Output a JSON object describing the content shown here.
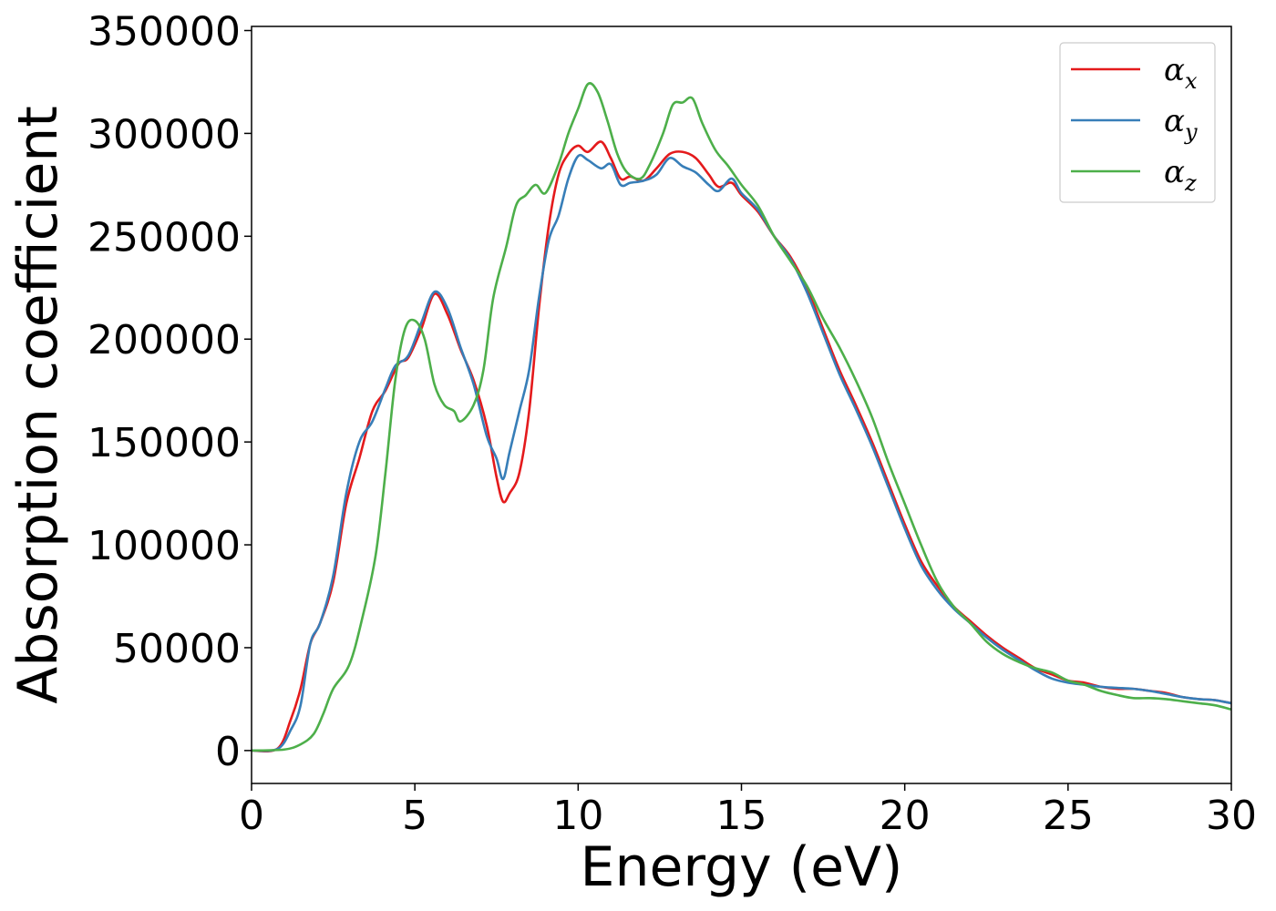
{
  "chart_data": {
    "type": "line",
    "title": "",
    "xlabel": "Energy (eV)",
    "ylabel": "Absorption coefficient",
    "xlim": [
      0,
      30
    ],
    "ylim": [
      -16000,
      352000
    ],
    "xticks": [
      "0",
      "5",
      "10",
      "15",
      "20",
      "25",
      "30"
    ],
    "xtick_values": [
      0,
      5,
      10,
      15,
      20,
      25,
      30
    ],
    "yticks": [
      "0",
      "50000",
      "100000",
      "150000",
      "200000",
      "250000",
      "300000",
      "350000"
    ],
    "ytick_values": [
      0,
      50000,
      100000,
      150000,
      200000,
      250000,
      300000,
      350000
    ],
    "grid": false,
    "legend_position": "top-right",
    "series": [
      {
        "name": "α_x",
        "symbol": "α",
        "subscript": "x",
        "color": "#e41a1c",
        "points": [
          [
            0,
            0
          ],
          [
            0.8,
            1000
          ],
          [
            1.2,
            15000
          ],
          [
            1.5,
            30000
          ],
          [
            1.8,
            52000
          ],
          [
            2.1,
            62000
          ],
          [
            2.5,
            82000
          ],
          [
            2.9,
            120000
          ],
          [
            3.3,
            142000
          ],
          [
            3.7,
            165000
          ],
          [
            4.1,
            175000
          ],
          [
            4.5,
            188000
          ],
          [
            4.8,
            191000
          ],
          [
            5.2,
            205000
          ],
          [
            5.6,
            222000
          ],
          [
            6.0,
            212000
          ],
          [
            6.4,
            195000
          ],
          [
            6.8,
            180000
          ],
          [
            7.2,
            158000
          ],
          [
            7.5,
            133000
          ],
          [
            7.7,
            121000
          ],
          [
            7.9,
            125000
          ],
          [
            8.2,
            135000
          ],
          [
            8.5,
            165000
          ],
          [
            8.8,
            215000
          ],
          [
            9.1,
            255000
          ],
          [
            9.4,
            280000
          ],
          [
            9.7,
            290000
          ],
          [
            10.0,
            294000
          ],
          [
            10.3,
            291000
          ],
          [
            10.7,
            296000
          ],
          [
            11.0,
            288000
          ],
          [
            11.3,
            278000
          ],
          [
            11.6,
            279000
          ],
          [
            12.0,
            277000
          ],
          [
            12.4,
            283000
          ],
          [
            12.8,
            290000
          ],
          [
            13.2,
            291000
          ],
          [
            13.6,
            288000
          ],
          [
            14.0,
            280000
          ],
          [
            14.3,
            274000
          ],
          [
            14.7,
            276000
          ],
          [
            15.0,
            270000
          ],
          [
            15.5,
            262000
          ],
          [
            16.0,
            250000
          ],
          [
            16.5,
            240000
          ],
          [
            17.0,
            225000
          ],
          [
            17.5,
            205000
          ],
          [
            18.0,
            185000
          ],
          [
            18.5,
            168000
          ],
          [
            19.0,
            150000
          ],
          [
            19.5,
            130000
          ],
          [
            20.0,
            110000
          ],
          [
            20.5,
            92000
          ],
          [
            21.0,
            80000
          ],
          [
            21.5,
            70000
          ],
          [
            22.0,
            63000
          ],
          [
            22.5,
            56000
          ],
          [
            23.0,
            50000
          ],
          [
            23.5,
            45000
          ],
          [
            24.0,
            40000
          ],
          [
            24.5,
            37000
          ],
          [
            25.0,
            34000
          ],
          [
            25.5,
            33000
          ],
          [
            26.0,
            31000
          ],
          [
            26.5,
            30000
          ],
          [
            27.0,
            30000
          ],
          [
            27.5,
            29000
          ],
          [
            28.0,
            28000
          ],
          [
            28.5,
            26000
          ],
          [
            29.0,
            25000
          ],
          [
            29.5,
            24500
          ],
          [
            30.0,
            23000
          ]
        ]
      },
      {
        "name": "α_y",
        "symbol": "α",
        "subscript": "y",
        "color": "#377eb8",
        "points": [
          [
            0,
            0
          ],
          [
            0.8,
            800
          ],
          [
            1.2,
            10000
          ],
          [
            1.5,
            22000
          ],
          [
            1.8,
            52000
          ],
          [
            2.1,
            62000
          ],
          [
            2.5,
            85000
          ],
          [
            2.9,
            125000
          ],
          [
            3.3,
            150000
          ],
          [
            3.7,
            160000
          ],
          [
            4.1,
            176000
          ],
          [
            4.4,
            187000
          ],
          [
            4.8,
            192000
          ],
          [
            5.2,
            208000
          ],
          [
            5.6,
            223000
          ],
          [
            6.0,
            215000
          ],
          [
            6.4,
            196000
          ],
          [
            6.8,
            178000
          ],
          [
            7.2,
            153000
          ],
          [
            7.5,
            142000
          ],
          [
            7.7,
            132000
          ],
          [
            7.9,
            145000
          ],
          [
            8.2,
            165000
          ],
          [
            8.5,
            185000
          ],
          [
            8.8,
            220000
          ],
          [
            9.1,
            248000
          ],
          [
            9.4,
            260000
          ],
          [
            9.7,
            278000
          ],
          [
            10.0,
            289000
          ],
          [
            10.3,
            287000
          ],
          [
            10.7,
            283000
          ],
          [
            11.0,
            285000
          ],
          [
            11.3,
            275000
          ],
          [
            11.6,
            276000
          ],
          [
            12.0,
            277000
          ],
          [
            12.4,
            280000
          ],
          [
            12.8,
            288000
          ],
          [
            13.2,
            284000
          ],
          [
            13.6,
            281000
          ],
          [
            14.0,
            275000
          ],
          [
            14.3,
            272000
          ],
          [
            14.7,
            278000
          ],
          [
            15.0,
            271000
          ],
          [
            15.5,
            263000
          ],
          [
            16.0,
            250000
          ],
          [
            16.5,
            239000
          ],
          [
            17.0,
            223000
          ],
          [
            17.5,
            203000
          ],
          [
            18.0,
            183000
          ],
          [
            18.5,
            166000
          ],
          [
            19.0,
            148000
          ],
          [
            19.5,
            128000
          ],
          [
            20.0,
            108000
          ],
          [
            20.5,
            90000
          ],
          [
            21.0,
            78000
          ],
          [
            21.5,
            69000
          ],
          [
            22.0,
            62000
          ],
          [
            22.5,
            55000
          ],
          [
            23.0,
            49000
          ],
          [
            23.5,
            44000
          ],
          [
            24.0,
            39000
          ],
          [
            24.5,
            35000
          ],
          [
            25.0,
            33000
          ],
          [
            25.5,
            32000
          ],
          [
            26.0,
            31000
          ],
          [
            26.5,
            30500
          ],
          [
            27.0,
            30000
          ],
          [
            27.5,
            29000
          ],
          [
            28.0,
            27500
          ],
          [
            28.5,
            26000
          ],
          [
            29.0,
            25000
          ],
          [
            29.5,
            24500
          ],
          [
            30.0,
            23000
          ]
        ]
      },
      {
        "name": "α_z",
        "symbol": "α",
        "subscript": "z",
        "color": "#4daf4a",
        "points": [
          [
            0,
            0
          ],
          [
            1.0,
            500
          ],
          [
            1.5,
            3000
          ],
          [
            1.9,
            8000
          ],
          [
            2.2,
            18000
          ],
          [
            2.5,
            30000
          ],
          [
            3.0,
            42000
          ],
          [
            3.4,
            65000
          ],
          [
            3.8,
            95000
          ],
          [
            4.1,
            135000
          ],
          [
            4.4,
            180000
          ],
          [
            4.7,
            205000
          ],
          [
            5.0,
            209000
          ],
          [
            5.3,
            200000
          ],
          [
            5.6,
            178000
          ],
          [
            5.9,
            168000
          ],
          [
            6.2,
            165000
          ],
          [
            6.4,
            160000
          ],
          [
            6.8,
            168000
          ],
          [
            7.1,
            185000
          ],
          [
            7.4,
            220000
          ],
          [
            7.8,
            245000
          ],
          [
            8.1,
            265000
          ],
          [
            8.4,
            270000
          ],
          [
            8.7,
            275000
          ],
          [
            9.0,
            271000
          ],
          [
            9.4,
            285000
          ],
          [
            9.7,
            300000
          ],
          [
            10.0,
            312000
          ],
          [
            10.3,
            324000
          ],
          [
            10.6,
            320000
          ],
          [
            10.9,
            306000
          ],
          [
            11.2,
            290000
          ],
          [
            11.5,
            281000
          ],
          [
            11.9,
            278000
          ],
          [
            12.2,
            285000
          ],
          [
            12.6,
            300000
          ],
          [
            12.9,
            314000
          ],
          [
            13.2,
            315000
          ],
          [
            13.5,
            317000
          ],
          [
            13.8,
            305000
          ],
          [
            14.2,
            292000
          ],
          [
            14.6,
            284000
          ],
          [
            15.0,
            275000
          ],
          [
            15.5,
            265000
          ],
          [
            16.0,
            250000
          ],
          [
            16.5,
            238000
          ],
          [
            17.0,
            226000
          ],
          [
            17.5,
            210000
          ],
          [
            18.0,
            196000
          ],
          [
            18.5,
            180000
          ],
          [
            19.0,
            162000
          ],
          [
            19.5,
            140000
          ],
          [
            20.0,
            120000
          ],
          [
            20.5,
            100000
          ],
          [
            21.0,
            82000
          ],
          [
            21.5,
            70000
          ],
          [
            22.0,
            62000
          ],
          [
            22.5,
            53000
          ],
          [
            23.0,
            47000
          ],
          [
            23.5,
            43000
          ],
          [
            24.0,
            40000
          ],
          [
            24.5,
            38000
          ],
          [
            25.0,
            34000
          ],
          [
            25.5,
            32000
          ],
          [
            26.0,
            29000
          ],
          [
            26.5,
            27000
          ],
          [
            27.0,
            25500
          ],
          [
            27.5,
            25500
          ],
          [
            28.0,
            25000
          ],
          [
            28.5,
            24000
          ],
          [
            29.0,
            23000
          ],
          [
            29.5,
            22000
          ],
          [
            30.0,
            20000
          ]
        ]
      }
    ]
  }
}
